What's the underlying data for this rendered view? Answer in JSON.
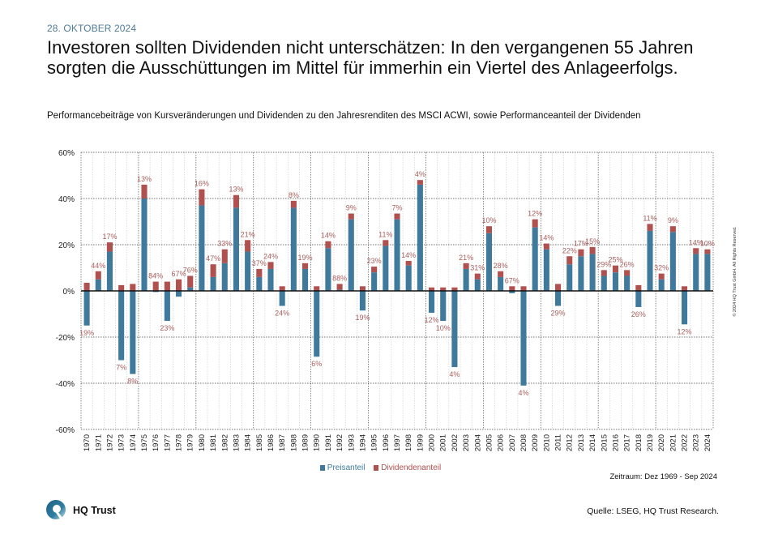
{
  "header": {
    "date": "28. OKTOBER 2024",
    "headline": "Investoren sollten Dividenden nicht unterschätzen: In den vergangenen 55 Jahren sorgten die Ausschüttungen im Mittel für immerhin ein Viertel des Anlageerfolgs."
  },
  "colors": {
    "price": "#3f7a9c",
    "dividend": "#b0504f",
    "label": "#a8605f",
    "date": "#4f7d96"
  },
  "chart_data": {
    "type": "bar",
    "stacked": true,
    "title": "Performancebeiträge von Kursveränderungen und Dividenden zu den Jahresrenditen des MSCI ACWI, sowie Performanceanteil der Dividenden",
    "xlabel": "",
    "ylabel": "",
    "ylim": [
      -60,
      60
    ],
    "yticks": [
      60,
      40,
      20,
      0,
      -20,
      -40,
      -60
    ],
    "ytick_labels": [
      "60%",
      "40%",
      "20%",
      "0%",
      "-20%",
      "-40%",
      "-60%"
    ],
    "grid": true,
    "legend_position": "bottom-center",
    "categories": [
      "1970",
      "1971",
      "1972",
      "1973",
      "1974",
      "1975",
      "1976",
      "1977",
      "1978",
      "1979",
      "1980",
      "1981",
      "1982",
      "1983",
      "1984",
      "1985",
      "1986",
      "1987",
      "1988",
      "1989",
      "1990",
      "1991",
      "1992",
      "1993",
      "1994",
      "1995",
      "1996",
      "1997",
      "1998",
      "1999",
      "2000",
      "2001",
      "2002",
      "2003",
      "2004",
      "2005",
      "2006",
      "2007",
      "2008",
      "2009",
      "2010",
      "2011",
      "2012",
      "2013",
      "2014",
      "2015",
      "2016",
      "2017",
      "2018",
      "2019",
      "2020",
      "2021",
      "2022",
      "2023",
      "2024"
    ],
    "series": [
      {
        "name": "Preisanteil",
        "values": [
          -15,
          5,
          17,
          -30,
          -36,
          40,
          -0.5,
          -13,
          -2.5,
          1.5,
          37,
          6,
          12,
          36,
          17,
          6,
          9.5,
          -6.5,
          36,
          9.5,
          -28.5,
          18.5,
          0.5,
          31,
          -8.5,
          8,
          19.5,
          31,
          11,
          46,
          -9.5,
          -13,
          -33,
          9.5,
          5,
          25,
          6,
          -1,
          -41,
          27.5,
          18,
          -6.5,
          11.5,
          15,
          16,
          6.5,
          8,
          6.5,
          -7,
          26,
          5,
          25.5,
          -14.5,
          16,
          16
        ]
      },
      {
        "name": "Dividendenanteil",
        "values": [
          3.5,
          3.5,
          4,
          2.5,
          3,
          6,
          4,
          4,
          5,
          5,
          7,
          5.5,
          6,
          5.5,
          5,
          3.5,
          3,
          2,
          3,
          2.5,
          2,
          3,
          2.5,
          2.5,
          2,
          2.5,
          2.5,
          2.5,
          2,
          2,
          1.5,
          1.5,
          1.5,
          2.5,
          2.5,
          3,
          2.5,
          2,
          2,
          3.5,
          2.5,
          3,
          3.5,
          3,
          3,
          2.5,
          3,
          2.5,
          2.5,
          3,
          2.5,
          2.5,
          2,
          2.5,
          2
        ]
      }
    ],
    "data_labels": [
      "19%",
      "44%",
      "17%",
      "7%",
      "8%",
      "13%",
      "84%",
      "23%",
      "67%",
      "76%",
      "16%",
      "47%",
      "33%",
      "13%",
      "21%",
      "37%",
      "24%",
      "24%",
      "8%",
      "19%",
      "6%",
      "14%",
      "88%",
      "9%",
      "19%",
      "23%",
      "11%",
      "7%",
      "14%",
      "4%",
      "12%",
      "10%",
      "4%",
      "21%",
      "31%",
      "10%",
      "28%",
      "67%",
      "4%",
      "12%",
      "14%",
      "29%",
      "22%",
      "17%",
      "15%",
      "29%",
      "25%",
      "26%",
      "26%",
      "11%",
      "32%",
      "9%",
      "12%",
      "14%",
      "10%"
    ],
    "data_label_meaning": "Performanceanteil der Dividenden"
  },
  "legend": {
    "price_label": "Preisanteil",
    "dividend_label": "Dividendenanteil"
  },
  "footer": {
    "period": "Zeitraum: Dez 1969 - Sep 2024",
    "logo_text": "HQ Trust",
    "source": "Quelle: LSEG, HQ Trust Research.",
    "copyright": "© 2024 HQ Trust GmbH. All Rights Reserved."
  }
}
